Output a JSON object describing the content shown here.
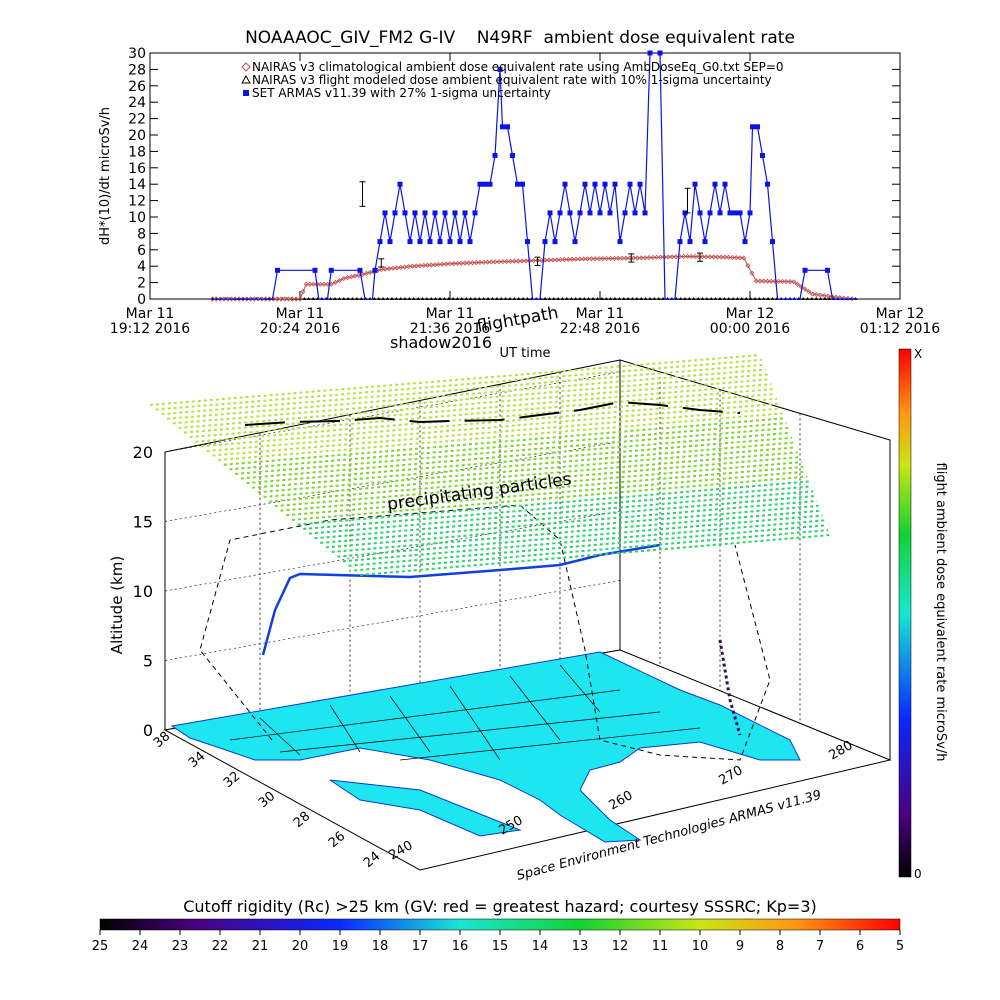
{
  "title": "NOAAAOC_GIV_FM2 G-IV    N49RF  ambient dose equivalent rate",
  "chart_data": [
    {
      "type": "line",
      "title": "NOAAAOC_GIV_FM2 G-IV    N49RF  ambient dose equivalent rate",
      "ylabel": "dH*(10)/dt microSv/h",
      "xlabel": "UT time",
      "ylim": [
        0,
        30
      ],
      "yticks": [
        "0",
        "2",
        "4",
        "6",
        "8",
        "10",
        "12",
        "14",
        "16",
        "18",
        "20",
        "22",
        "24",
        "26",
        "28",
        "30"
      ],
      "xticks": [
        {
          "l1": "Mar 11",
          "l2": "19:12 2016"
        },
        {
          "l1": "Mar 11",
          "l2": "20:24 2016"
        },
        {
          "l1": "Mar 11",
          "l2": "21:36 2016"
        },
        {
          "l1": "Mar 11",
          "l2": "22:48 2016"
        },
        {
          "l1": "Mar 12",
          "l2": "00:00 2016"
        },
        {
          "l1": "Mar 12",
          "l2": "01:12 2016"
        }
      ],
      "legend": [
        {
          "name": "NAIRAS v3 climatological ambient dose equivalent rate using AmbDoseEq_G0.txt SEP=0",
          "color": "#c0504d",
          "marker": "diamond"
        },
        {
          "name": "NAIRAS v3 flight modeled dose ambient equivalent rate with 10% 1-sigma uncertainty",
          "color": "#000000",
          "marker": "triangle"
        },
        {
          "name": "SET ARMAS v11.39 with 27% 1-sigma uncertainty",
          "color": "#0a14e6",
          "marker": "square"
        }
      ],
      "legend_position": "top",
      "series": [
        {
          "name": "NAIRAS v3 climatological ambient dose equivalent rate using AmbDoseEq_G0.txt SEP=0",
          "color": "#c0504d",
          "points": [
            [
              19.7,
              0
            ],
            [
              20.4,
              0
            ],
            [
              20.45,
              1.8
            ],
            [
              20.65,
              1.8
            ],
            [
              20.75,
              2.5
            ],
            [
              20.9,
              3.0
            ],
            [
              21.05,
              3.6
            ],
            [
              21.3,
              4.0
            ],
            [
              21.6,
              4.3
            ],
            [
              21.9,
              4.5
            ],
            [
              22.3,
              4.7
            ],
            [
              22.7,
              4.9
            ],
            [
              23.1,
              5.0
            ],
            [
              23.5,
              5.2
            ],
            [
              23.8,
              5.1
            ],
            [
              23.95,
              5.0
            ],
            [
              24.05,
              2.2
            ],
            [
              24.35,
              2.1
            ],
            [
              24.5,
              0.6
            ],
            [
              24.75,
              0.1
            ],
            [
              24.85,
              0
            ]
          ]
        },
        {
          "name": "NAIRAS v3 flight modeled dose ambient equivalent rate with 10% 1-sigma uncertainty",
          "color": "#000000",
          "points": [
            [
              19.7,
              0
            ],
            [
              24.85,
              0
            ]
          ]
        },
        {
          "name": "SET ARMAS v11.39 with 27% 1-sigma uncertainty",
          "color": "#0a14e6",
          "points": [
            [
              19.7,
              0
            ],
            [
              20.18,
              0
            ],
            [
              20.22,
              3.5
            ],
            [
              20.52,
              3.5
            ],
            [
              20.55,
              0
            ],
            [
              20.62,
              0
            ],
            [
              20.65,
              3.5
            ],
            [
              20.88,
              3.5
            ],
            [
              20.92,
              0
            ],
            [
              20.98,
              0
            ],
            [
              21.0,
              3.5
            ],
            [
              21.04,
              7
            ],
            [
              21.08,
              10.5
            ],
            [
              21.12,
              7
            ],
            [
              21.16,
              10.5
            ],
            [
              21.2,
              14
            ],
            [
              21.24,
              10.5
            ],
            [
              21.28,
              7
            ],
            [
              21.32,
              10.5
            ],
            [
              21.36,
              7
            ],
            [
              21.4,
              10.5
            ],
            [
              21.44,
              7
            ],
            [
              21.48,
              10.5
            ],
            [
              21.52,
              7
            ],
            [
              21.56,
              10.5
            ],
            [
              21.6,
              7
            ],
            [
              21.64,
              10.5
            ],
            [
              21.68,
              7
            ],
            [
              21.72,
              10.5
            ],
            [
              21.76,
              7
            ],
            [
              21.8,
              10.5
            ],
            [
              21.84,
              14
            ],
            [
              21.88,
              14
            ],
            [
              21.92,
              14
            ],
            [
              21.96,
              17.5
            ],
            [
              22.0,
              28
            ],
            [
              22.02,
              21
            ],
            [
              22.06,
              21
            ],
            [
              22.1,
              17.5
            ],
            [
              22.14,
              14
            ],
            [
              22.18,
              14
            ],
            [
              22.22,
              7
            ],
            [
              22.26,
              0
            ],
            [
              22.32,
              0
            ],
            [
              22.36,
              7
            ],
            [
              22.4,
              10.5
            ],
            [
              22.44,
              7
            ],
            [
              22.48,
              10.5
            ],
            [
              22.52,
              14
            ],
            [
              22.56,
              10.5
            ],
            [
              22.6,
              7
            ],
            [
              22.64,
              10.5
            ],
            [
              22.68,
              14
            ],
            [
              22.72,
              10.5
            ],
            [
              22.76,
              14
            ],
            [
              22.8,
              10.5
            ],
            [
              22.84,
              14
            ],
            [
              22.88,
              10.5
            ],
            [
              22.92,
              14
            ],
            [
              22.96,
              7
            ],
            [
              23.0,
              10.5
            ],
            [
              23.04,
              14
            ],
            [
              23.08,
              10.5
            ],
            [
              23.12,
              14
            ],
            [
              23.16,
              10.5
            ],
            [
              23.2,
              30
            ],
            [
              23.28,
              30
            ],
            [
              23.32,
              0
            ],
            [
              23.4,
              0
            ],
            [
              23.44,
              7
            ],
            [
              23.48,
              10.5
            ],
            [
              23.52,
              7
            ],
            [
              23.56,
              14
            ],
            [
              23.6,
              10.5
            ],
            [
              23.64,
              7
            ],
            [
              23.68,
              10.5
            ],
            [
              23.72,
              14
            ],
            [
              23.76,
              10.5
            ],
            [
              23.8,
              14
            ],
            [
              23.84,
              10.5
            ],
            [
              23.88,
              10.5
            ],
            [
              23.92,
              10.5
            ],
            [
              23.96,
              7
            ],
            [
              24.0,
              10.5
            ],
            [
              24.02,
              21
            ],
            [
              24.06,
              21
            ],
            [
              24.1,
              17.5
            ],
            [
              24.14,
              14
            ],
            [
              24.18,
              7
            ],
            [
              24.22,
              0
            ],
            [
              24.4,
              0
            ],
            [
              24.44,
              3.5
            ],
            [
              24.62,
              3.5
            ],
            [
              24.66,
              0
            ],
            [
              24.85,
              0
            ]
          ]
        }
      ],
      "error_bars": [
        {
          "x": 20.9,
          "y": 12.8,
          "err": 1.5
        },
        {
          "x": 21.05,
          "y": 4.4,
          "err": 0.5
        },
        {
          "x": 22.3,
          "y": 4.6,
          "err": 0.5
        },
        {
          "x": 23.05,
          "y": 5.0,
          "err": 0.5
        },
        {
          "x": 23.5,
          "y": 12.0,
          "err": 1.5
        },
        {
          "x": 23.6,
          "y": 5.1,
          "err": 0.5
        }
      ],
      "xlim": [
        19.2,
        25.2
      ]
    },
    {
      "type": "scatter",
      "title": "",
      "zlabel": "Altitude (km)",
      "zlim": [
        0,
        20
      ],
      "zticks": [
        "0",
        "5",
        "10",
        "15",
        "20"
      ],
      "lat_ticks": [
        "38",
        "34",
        "32",
        "30",
        "28",
        "26",
        "24"
      ],
      "lon_ticks": [
        "240",
        "250",
        "260",
        "270",
        "280"
      ],
      "annotations": [
        "shadow2016",
        "flightpath",
        "precipitating particles",
        "Space Environment Technologies ARMAS v11.39"
      ],
      "colorbar": {
        "label": "flight ambient dose equivalent rate microSv/h",
        "top": "X",
        "bottom": "0"
      }
    },
    {
      "type": "heatmap",
      "title": "Cutoff rigidity (Rc) >25 km (GV: red = greatest hazard; courtesy SSSRC; Kp=3)",
      "ticks": [
        "25",
        "24",
        "23",
        "22",
        "21",
        "20",
        "19",
        "18",
        "17",
        "16",
        "15",
        "14",
        "13",
        "12",
        "11",
        "10",
        "9",
        "8",
        "7",
        "6",
        "5"
      ]
    }
  ],
  "colors": {
    "nairas_clim": "#c0504d",
    "nairas_flight": "#000000",
    "armas": "#0a14e6",
    "map_fill": "#1ee6f0",
    "grid_green": "#7ad62a"
  }
}
